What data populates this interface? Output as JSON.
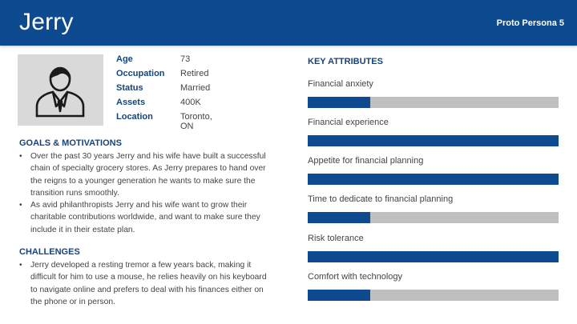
{
  "header": {
    "title": "Jerry",
    "badge": "Proto Persona 5",
    "color": "#0d4a8f"
  },
  "profile": {
    "avatar_icon": "person-avatar-icon",
    "fields": [
      {
        "label": "Age",
        "value": "73"
      },
      {
        "label": "Occupation",
        "value": "Retired"
      },
      {
        "label": "Status",
        "value": "Married"
      },
      {
        "label": "Assets",
        "value": "400K"
      },
      {
        "label": "Location",
        "value": "Toronto, ON"
      }
    ]
  },
  "goals": {
    "heading": "GOALS & MOTIVATIONS",
    "items": [
      "Over the past 30 years Jerry and his wife have built a successful chain of specialty grocery stores. As Jerry prepares to hand over the reigns to a younger generation he wants to make sure the transition runs smoothly.",
      "As avid philanthropists Jerry and his wife want to grow their charitable contributions worldwide, and want to make sure they include it in their estate plan."
    ]
  },
  "challenges": {
    "heading": "CHALLENGES",
    "items": [
      "Jerry developed a resting tremor a few years back, making it difficult for him to use a mouse, he relies heavily on his keyboard to navigate online and prefers to deal with his finances either on the phone or in person."
    ]
  },
  "attributes": {
    "heading": "KEY ATTRIBUTES",
    "fill_color": "#0d4a8f",
    "track_color": "#bfbfbf",
    "items": [
      {
        "label": "Financial anxiety",
        "level": 0.25
      },
      {
        "label": "Financial experience",
        "level": 1.0
      },
      {
        "label": "Appetite for financial planning",
        "level": 1.0
      },
      {
        "label": "Time to dedicate to financial planning",
        "level": 0.25
      },
      {
        "label": "Risk tolerance",
        "level": 1.0
      },
      {
        "label": "Comfort with technology",
        "level": 0.25
      }
    ]
  }
}
